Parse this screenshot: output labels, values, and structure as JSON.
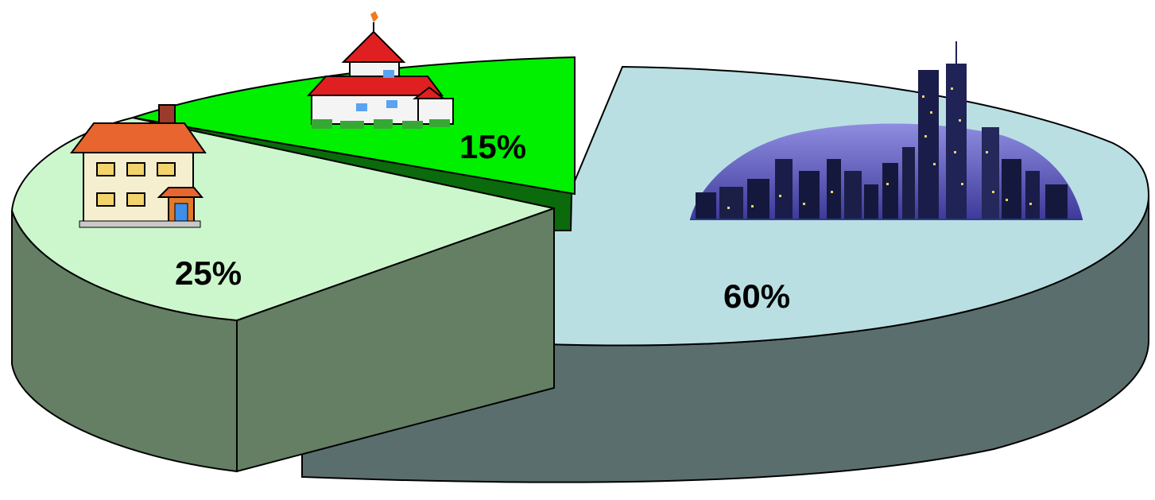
{
  "chart_data": {
    "type": "pie",
    "style": "3d-exploded",
    "slices": [
      {
        "label": "",
        "value": 60,
        "value_label": "60%",
        "icon": "city-skyline-icon",
        "top_color": "#b9dfe3",
        "side_color": "#5b6e6e"
      },
      {
        "label": "",
        "value": 25,
        "value_label": "25%",
        "icon": "house-icon",
        "top_color": "#ccf7cc",
        "side_color": "#647f64"
      },
      {
        "label": "",
        "value": 15,
        "value_label": "15%",
        "icon": "village-farmhouse-icon",
        "top_color": "#00f000",
        "side_color": "#0b6a0b"
      }
    ]
  }
}
